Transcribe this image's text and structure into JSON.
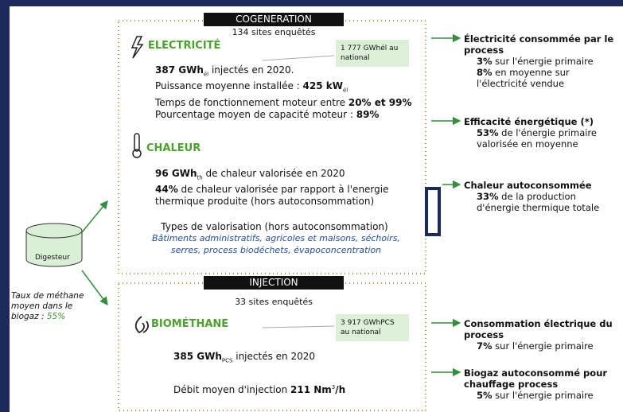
{
  "digesteur": {
    "label": "Digesteur",
    "note": [
      {
        "t": "Taux de méthane moyen dans le biogaz : "
      },
      {
        "g": "55%"
      }
    ]
  },
  "cogeneration": {
    "title": "COGENERATION",
    "sites": "134 sites enquêtés",
    "electricite": {
      "title": "ELECTRICITÉ",
      "national": [
        {
          "t": "1 777 GWh"
        },
        {
          "t": "él"
        },
        {
          "t": " au national"
        }
      ],
      "lines": [
        [
          {
            "b": "387 GWh"
          },
          {
            "sub": "él"
          },
          {
            "t": " injectés en 2020."
          }
        ],
        [
          {
            "t": "Puissance moyenne installée : "
          },
          {
            "b": "425 kW"
          },
          {
            "sub": "él"
          }
        ],
        [
          {
            "t": "Temps de fonctionnement moteur entre "
          },
          {
            "b": "20% et 99%"
          }
        ],
        [
          {
            "t": "Pourcentage moyen de capacité moteur : "
          },
          {
            "b": "89%"
          }
        ]
      ]
    },
    "chaleur": {
      "title": "CHALEUR",
      "lines": [
        [
          {
            "b": "96 GWh"
          },
          {
            "sub": "th"
          },
          {
            "t": " de chaleur valorisée en 2020"
          }
        ],
        [
          {
            "b": "44%"
          },
          {
            "t": " de chaleur valorisée par rapport à l'energie thermique produite (hors autoconsommation)"
          }
        ]
      ],
      "types_title": "Types de valorisation (hors autoconsommation)",
      "types": "Bâtiments administratifs, agricoles et maisons, séchoirs, serres, process biodéchets, évapoconcentration"
    }
  },
  "injection": {
    "title": "INJECTION",
    "sites": "33 sites enquêtés",
    "biomethane": {
      "title": "BIOMÉTHANE",
      "national": [
        {
          "t": "3 917 GWh"
        },
        {
          "t": "PCS"
        },
        {
          "t": " au national"
        }
      ],
      "lines": [
        [
          {
            "b": "385 GWh"
          },
          {
            "sub": "PCS"
          },
          {
            "t": " injectés en 2020"
          }
        ],
        [
          {
            "t": "Débit moyen d'injection  "
          },
          {
            "b": "211 Nm"
          },
          {
            "sup": "3"
          },
          {
            "b": "/h"
          }
        ]
      ]
    }
  },
  "indicators": [
    {
      "title": "Électricité consommée par le process",
      "lines": [
        [
          {
            "b": "3%"
          },
          {
            "t": " sur l'énergie primaire"
          }
        ],
        [
          {
            "b": "8%"
          },
          {
            "t": " en moyenne sur l'électricité vendue"
          }
        ]
      ]
    },
    {
      "title": "Efficacité énergétique (*)",
      "lines": [
        [
          {
            "b": "53%"
          },
          {
            "t": " de l'énergie primaire valorisée en moyenne"
          }
        ]
      ]
    },
    {
      "title": "Chaleur autoconsommée",
      "lines": [
        [
          {
            "b": "33%"
          },
          {
            "t": " de la production d'énergie thermique totale"
          }
        ]
      ]
    },
    {
      "title": "Consommation électrique du process",
      "lines": [
        [
          {
            "b": "7%"
          },
          {
            "t": " sur l'énergie primaire"
          }
        ]
      ]
    },
    {
      "title": "Biogaz autoconsommé pour chauffage process",
      "lines": [
        [
          {
            "b": "5%"
          },
          {
            "t": " sur l'énergie primaire"
          }
        ]
      ]
    }
  ]
}
